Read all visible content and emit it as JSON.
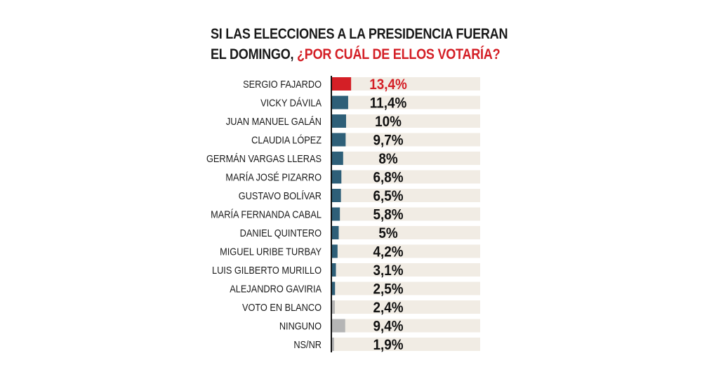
{
  "chart_data": {
    "type": "bar",
    "orientation": "horizontal",
    "title_part1": "SI LAS ELECCIONES A LA PRESIDENCIA FUERAN",
    "title_part2": "EL DOMINGO, ",
    "title_highlight": "¿POR CUÁL DE ELLOS VOTARÍA?",
    "unit": "%",
    "xlim": [
      0,
      100
    ],
    "grid": false,
    "categories": [
      "SERGIO FAJARDO",
      "VICKY DÁVILA",
      "JUAN MANUEL GALÁN",
      "CLAUDIA LÓPEZ",
      "GERMÁN VARGAS LLERAS",
      "MARÍA JOSÉ PIZARRO",
      "GUSTAVO BOLÍVAR",
      "MARÍA FERNANDA CABAL",
      "DANIEL QUINTERO",
      "MIGUEL URIBE TURBAY",
      "LUIS GILBERTO MURILLO",
      "ALEJANDRO GAVIRIA",
      "VOTO EN BLANCO",
      "NINGUNO",
      "NS/NR"
    ],
    "values": [
      13.4,
      11.4,
      10,
      9.7,
      8,
      6.8,
      6.5,
      5.8,
      5,
      4.2,
      3.1,
      2.5,
      2.4,
      9.4,
      1.9
    ],
    "value_labels": [
      "13,4%",
      "11,4%",
      "10%",
      "9,7%",
      "8%",
      "6,8%",
      "6,5%",
      "5,8%",
      "5%",
      "4,2%",
      "3,1%",
      "2,5%",
      "2,4%",
      "9,4%",
      "1,9%"
    ],
    "bar_colors": [
      "#d41f26",
      "#2e5f78",
      "#2e5f78",
      "#2e5f78",
      "#2e5f78",
      "#2e5f78",
      "#2e5f78",
      "#2e5f78",
      "#2e5f78",
      "#2e5f78",
      "#2e5f78",
      "#2e5f78",
      "#b5b5b5",
      "#b5b5b5",
      "#b5b5b5"
    ],
    "value_label_colors": [
      "#d41f26",
      "#111111",
      "#111111",
      "#111111",
      "#111111",
      "#111111",
      "#111111",
      "#111111",
      "#111111",
      "#111111",
      "#111111",
      "#111111",
      "#111111",
      "#111111",
      "#111111"
    ],
    "track_color": "#f1ece4"
  }
}
